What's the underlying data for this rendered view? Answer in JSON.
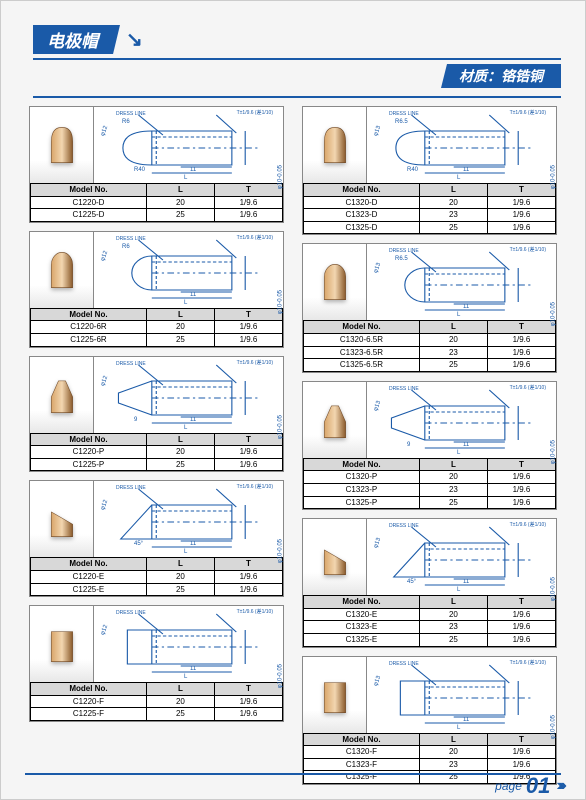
{
  "header": {
    "title": "电极帽",
    "material_label": "材质：铬锆铜"
  },
  "footer": {
    "page_label": "page",
    "page_num": "01"
  },
  "diagram_labels": {
    "dress": "DRESS LINE",
    "tol": "T±1/9.6\n(差1/10)",
    "dia12": "φ12",
    "dia13": "φ13",
    "dia10": "φ10-0.05",
    "r6": "R6",
    "r65": "R6.5",
    "r40": "R40",
    "dim11": "11",
    "dimL": "L",
    "dim9": "9",
    "dim45": "45°"
  },
  "columns": [
    [
      {
        "shape": "dome",
        "dia": "φ12",
        "radius": "R6",
        "extra": "R40",
        "rows": [
          [
            "C1220-D",
            "20",
            "1/9.6"
          ],
          [
            "C1225-D",
            "25",
            "1/9.6"
          ]
        ]
      },
      {
        "shape": "round",
        "dia": "φ12",
        "radius": "R6",
        "rows": [
          [
            "C1220-6R",
            "20",
            "1/9.6"
          ],
          [
            "C1225-6R",
            "25",
            "1/9.6"
          ]
        ]
      },
      {
        "shape": "pointed",
        "dia": "φ12",
        "extra": "9",
        "rows": [
          [
            "C1220-P",
            "20",
            "1/9.6"
          ],
          [
            "C1225-P",
            "25",
            "1/9.6"
          ]
        ]
      },
      {
        "shape": "eccentric",
        "dia": "φ12",
        "extra": "45°",
        "rows": [
          [
            "C1220-E",
            "20",
            "1/9.6"
          ],
          [
            "C1225-E",
            "25",
            "1/9.6"
          ]
        ]
      },
      {
        "shape": "flat",
        "dia": "φ12",
        "rows": [
          [
            "C1220-F",
            "20",
            "1/9.6"
          ],
          [
            "C1225-F",
            "25",
            "1/9.6"
          ]
        ]
      }
    ],
    [
      {
        "shape": "dome",
        "dia": "φ13",
        "radius": "R6.5",
        "extra": "R40",
        "rows": [
          [
            "C1320-D",
            "20",
            "1/9.6"
          ],
          [
            "C1323-D",
            "23",
            "1/9.6"
          ],
          [
            "C1325-D",
            "25",
            "1/9.6"
          ]
        ]
      },
      {
        "shape": "round",
        "dia": "φ13",
        "radius": "R6.5",
        "rows": [
          [
            "C1320-6.5R",
            "20",
            "1/9.6"
          ],
          [
            "C1323-6.5R",
            "23",
            "1/9.6"
          ],
          [
            "C1325-6.5R",
            "25",
            "1/9.6"
          ]
        ]
      },
      {
        "shape": "pointed",
        "dia": "φ13",
        "extra": "9",
        "rows": [
          [
            "C1320-P",
            "20",
            "1/9.6"
          ],
          [
            "C1323-P",
            "23",
            "1/9.6"
          ],
          [
            "C1325-P",
            "25",
            "1/9.6"
          ]
        ]
      },
      {
        "shape": "eccentric",
        "dia": "φ13",
        "extra": "45°",
        "rows": [
          [
            "C1320-E",
            "20",
            "1/9.6"
          ],
          [
            "C1323-E",
            "23",
            "1/9.6"
          ],
          [
            "C1325-E",
            "25",
            "1/9.6"
          ]
        ]
      },
      {
        "shape": "flat",
        "dia": "φ13",
        "rows": [
          [
            "C1320-F",
            "20",
            "1/9.6"
          ],
          [
            "C1323-F",
            "23",
            "1/9.6"
          ],
          [
            "C1325-F",
            "25",
            "1/9.6"
          ]
        ]
      }
    ]
  ],
  "table_headers": {
    "model": "Model  No.",
    "l": "L",
    "t": "T"
  },
  "colors": {
    "brand": "#1a5aa8",
    "copper_light": "#d9a66b",
    "copper_dark": "#8a5a2b"
  }
}
